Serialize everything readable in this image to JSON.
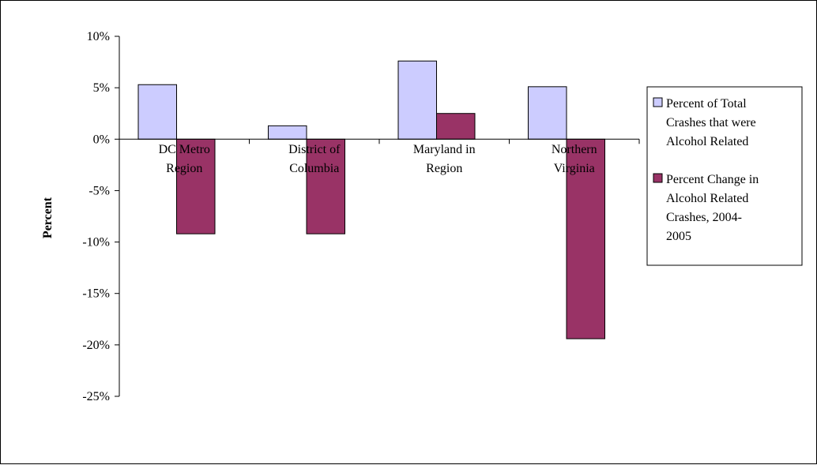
{
  "chart_data": {
    "type": "bar",
    "title": "",
    "xlabel": "",
    "ylabel": "Percent",
    "ylim": [
      -25,
      10
    ],
    "yticks": [
      10,
      5,
      0,
      -5,
      -10,
      -15,
      -20,
      -25
    ],
    "ytick_labels": [
      "10%",
      "5%",
      "0%",
      "-5%",
      "-10%",
      "-15%",
      "-20%",
      "-25%"
    ],
    "categories": [
      [
        "DC Metro",
        "Region"
      ],
      [
        "District of",
        "Columbia"
      ],
      [
        "Maryland in",
        "Region"
      ],
      [
        "Northern",
        "Virginia"
      ]
    ],
    "series": [
      {
        "name": [
          "Percent of Total",
          "Crashes that were",
          "Alcohol Related"
        ],
        "values": [
          5.3,
          1.3,
          7.6,
          5.1
        ],
        "color": "#ccccff"
      },
      {
        "name": [
          "Percent Change in",
          "Alcohol Related",
          "Crashes, 2004-",
          "2005"
        ],
        "values": [
          -9.2,
          -9.2,
          2.5,
          -19.4
        ],
        "color": "#993366"
      }
    ],
    "grid": false,
    "legend": "right"
  }
}
